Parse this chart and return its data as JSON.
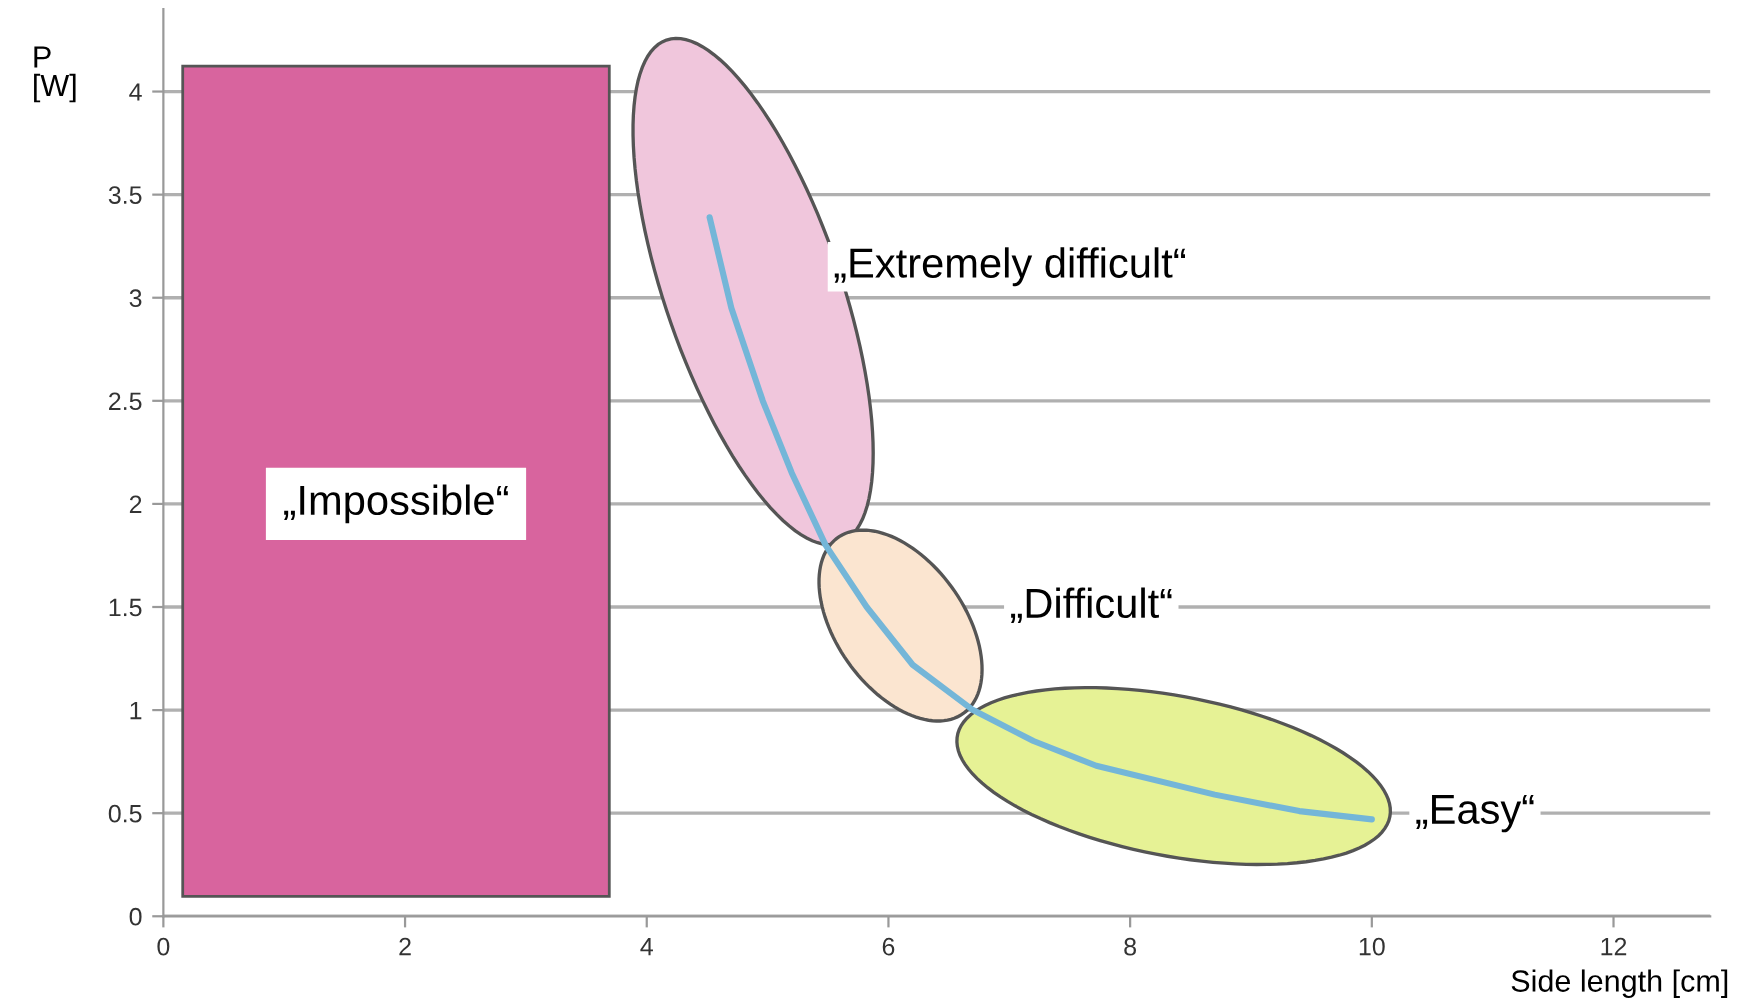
{
  "chart_data": {
    "type": "line",
    "xlabel": "Side length [cm]",
    "ylabel": "P\n[W]",
    "x": [
      4.52,
      4.7,
      4.96,
      5.2,
      5.48,
      5.82,
      6.2,
      6.7,
      7.2,
      7.72,
      8.7,
      9.4,
      10.0
    ],
    "series": [
      {
        "color": "#74b6d8",
        "values": [
          3.39,
          2.95,
          2.5,
          2.15,
          1.8,
          1.5,
          1.22,
          1.0,
          0.85,
          0.73,
          0.59,
          0.51,
          0.47
        ]
      }
    ],
    "xlim": [
      0,
      12.8
    ],
    "ylim": [
      0,
      4.4
    ],
    "xticks": [
      0,
      2,
      4,
      6,
      8,
      10,
      12
    ],
    "yticks": [
      0,
      0.5,
      1,
      1.5,
      2,
      2.5,
      3,
      3.5,
      4
    ],
    "bands": [
      {
        "axis": "x",
        "from": 0.16,
        "to": 3.69,
        "label": "„Impossible“",
        "color": "#d8649e"
      }
    ],
    "annotations": [
      "„Extremely difficult“",
      "„Difficult“",
      "„Easy“"
    ],
    "grid": "y",
    "marker": "none",
    "line_style": "solid",
    "legend": false
  }
}
